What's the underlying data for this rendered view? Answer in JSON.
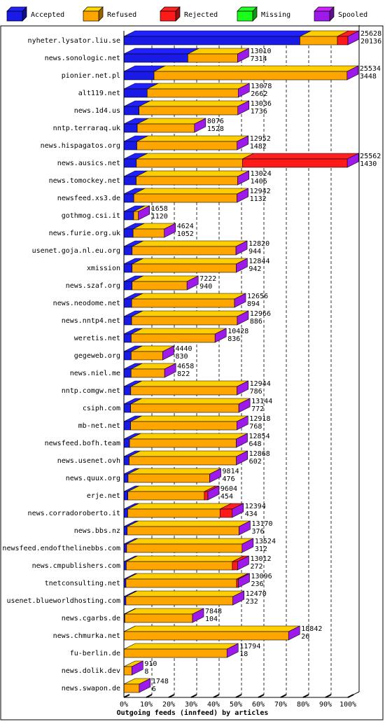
{
  "chart_data": {
    "type": "bar",
    "orientation": "horizontal",
    "stacked": true,
    "title": "Outgoing feeds (innfeed) by articles",
    "x_ticks": [
      "0%",
      "10%",
      "20%",
      "30%",
      "40%",
      "50%",
      "60%",
      "70%",
      "80%",
      "90%",
      "100%"
    ],
    "x_range": [
      0,
      100
    ],
    "legend": [
      {
        "name": "Accepted",
        "color": "#1a1ae6"
      },
      {
        "name": "Refused",
        "color": "#ffa500"
      },
      {
        "name": "Rejected",
        "color": "#ff1a1a"
      },
      {
        "name": "Missing",
        "color": "#1aff1a"
      },
      {
        "name": "Spooled",
        "color": "#9d1aeb"
      }
    ],
    "legend_position": "top",
    "categories": [
      "nyheter.lysator.liu.se",
      "news.sonologic.net",
      "pionier.net.pl",
      "alt119.net",
      "news.1d4.us",
      "nntp.terraraq.uk",
      "news.hispagatos.org",
      "news.ausics.net",
      "news.tomockey.net",
      "newsfeed.xs3.de",
      "gothmog.csi.it",
      "news.furie.org.uk",
      "usenet.goja.nl.eu.org",
      "xmission",
      "news.szaf.org",
      "news.neodome.net",
      "news.nntp4.net",
      "weretis.net",
      "gegeweb.org",
      "news.niel.me",
      "nntp.comgw.net",
      "csiph.com",
      "mb-net.net",
      "newsfeed.bofh.team",
      "news.usenet.ovh",
      "news.quux.org",
      "erje.net",
      "news.corradoroberto.it",
      "news.bbs.nz",
      "newsfeed.endofthelinebbs.com",
      "news.cmpublishers.com",
      "tnetconsulting.net",
      "usenet.blueworldhosting.com",
      "news.cgarbs.de",
      "news.chmurka.net",
      "fu-berlin.de",
      "news.dolik.dev",
      "news.swapon.de"
    ],
    "offered": [
      25628,
      13010,
      25534,
      13078,
      13036,
      8076,
      12952,
      25562,
      13024,
      12942,
      1658,
      4624,
      12820,
      12844,
      7222,
      12656,
      12966,
      10428,
      4440,
      4658,
      12944,
      13144,
      12918,
      12854,
      12868,
      9814,
      9604,
      12394,
      13170,
      13524,
      13012,
      13096,
      12470,
      7848,
      18842,
      11794,
      910,
      1748
    ],
    "accepted": [
      20136,
      7314,
      3448,
      2662,
      1736,
      1528,
      1482,
      1430,
      1406,
      1132,
      1120,
      1052,
      944,
      942,
      940,
      894,
      886,
      836,
      830,
      822,
      786,
      772,
      768,
      648,
      602,
      476,
      454,
      434,
      376,
      312,
      272,
      236,
      232,
      104,
      26,
      18,
      8,
      6
    ],
    "rejected": [
      1200,
      0,
      0,
      0,
      0,
      0,
      0,
      12000,
      0,
      0,
      0,
      0,
      0,
      0,
      0,
      0,
      0,
      0,
      0,
      0,
      0,
      0,
      0,
      0,
      0,
      0,
      400,
      1400,
      0,
      0,
      600,
      200,
      0,
      0,
      0,
      0,
      0,
      0
    ],
    "missing": [
      0,
      0,
      0,
      0,
      0,
      0,
      0,
      0,
      0,
      0,
      0,
      0,
      0,
      0,
      0,
      0,
      0,
      0,
      0,
      0,
      0,
      0,
      0,
      0,
      0,
      0,
      0,
      0,
      0,
      0,
      0,
      0,
      0,
      0,
      0,
      0,
      0,
      0
    ]
  }
}
